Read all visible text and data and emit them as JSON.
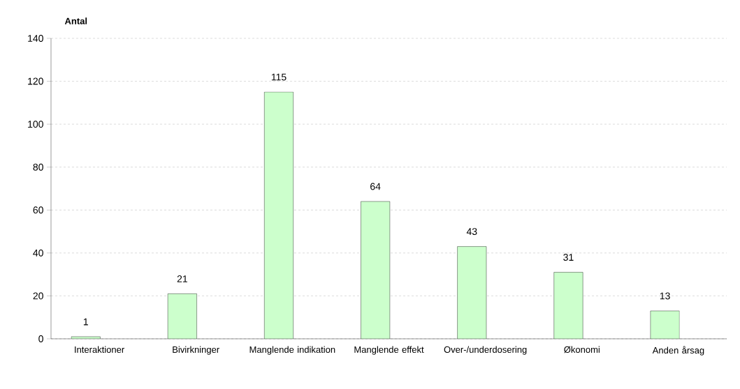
{
  "chart_data": {
    "type": "bar",
    "ylabel": "Antal",
    "categories": [
      "Interaktioner",
      "Bivirkninger",
      "Manglende indikation",
      "Manglende effekt",
      "Over-/underdosering",
      "Økonomi",
      "Anden årsag"
    ],
    "values": [
      1,
      21,
      115,
      64,
      43,
      31,
      13
    ],
    "color": "#ccffcc",
    "ylim": [
      0,
      140
    ],
    "yticks": [
      0,
      20,
      40,
      60,
      80,
      100,
      120,
      140
    ],
    "grid": "y",
    "data_labels": true
  }
}
